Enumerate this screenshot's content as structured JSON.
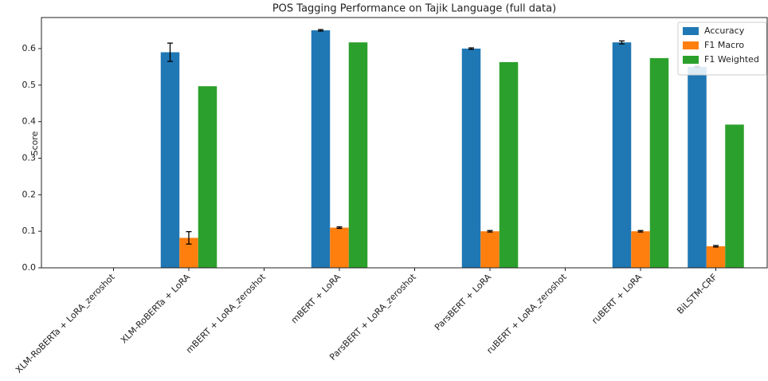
{
  "chart_data": {
    "type": "bar",
    "title": "POS Tagging Performance on Tajik Language (full data)",
    "ylabel": "Score",
    "categories": [
      "XLM-RoBERTa + LoRA_zeroshot",
      "XLM-RoBERTa + LoRA",
      "mBERT + LoRA_zeroshot",
      "mBERT + LoRA",
      "ParsBERT + LoRA_zeroshot",
      "ParsBERT + LoRA",
      "ruBERT + LoRA_zeroshot",
      "ruBERT + LoRA",
      "BiLSTM-CRF"
    ],
    "series": [
      {
        "name": "Accuracy",
        "color": "#1f77b4",
        "values": [
          0,
          0.59,
          0,
          0.65,
          0,
          0.6,
          0,
          0.617,
          0.55
        ],
        "errors": [
          0,
          0.025,
          0,
          0.002,
          0,
          0.002,
          0,
          0.004,
          0.002
        ]
      },
      {
        "name": "F1 Macro",
        "color": "#ff7f0e",
        "values": [
          0,
          0.082,
          0,
          0.11,
          0,
          0.1,
          0,
          0.1,
          0.059
        ],
        "errors": [
          0,
          0.017,
          0,
          0.002,
          0,
          0.002,
          0,
          0.002,
          0.002
        ]
      },
      {
        "name": "F1 Weighted",
        "color": "#2ca02c",
        "values": [
          0,
          0.497,
          0,
          0.617,
          0,
          0.563,
          0,
          0.574,
          0.392
        ],
        "errors": [
          0,
          0,
          0,
          0,
          0,
          0,
          0,
          0,
          0
        ]
      }
    ],
    "ylim": [
      0,
      0.685
    ],
    "yticks": [
      {
        "value": 0,
        "label": "0.0"
      },
      0.1,
      0.2,
      0.3,
      0.4,
      0.5,
      0.6
    ],
    "legend": "upper right"
  }
}
